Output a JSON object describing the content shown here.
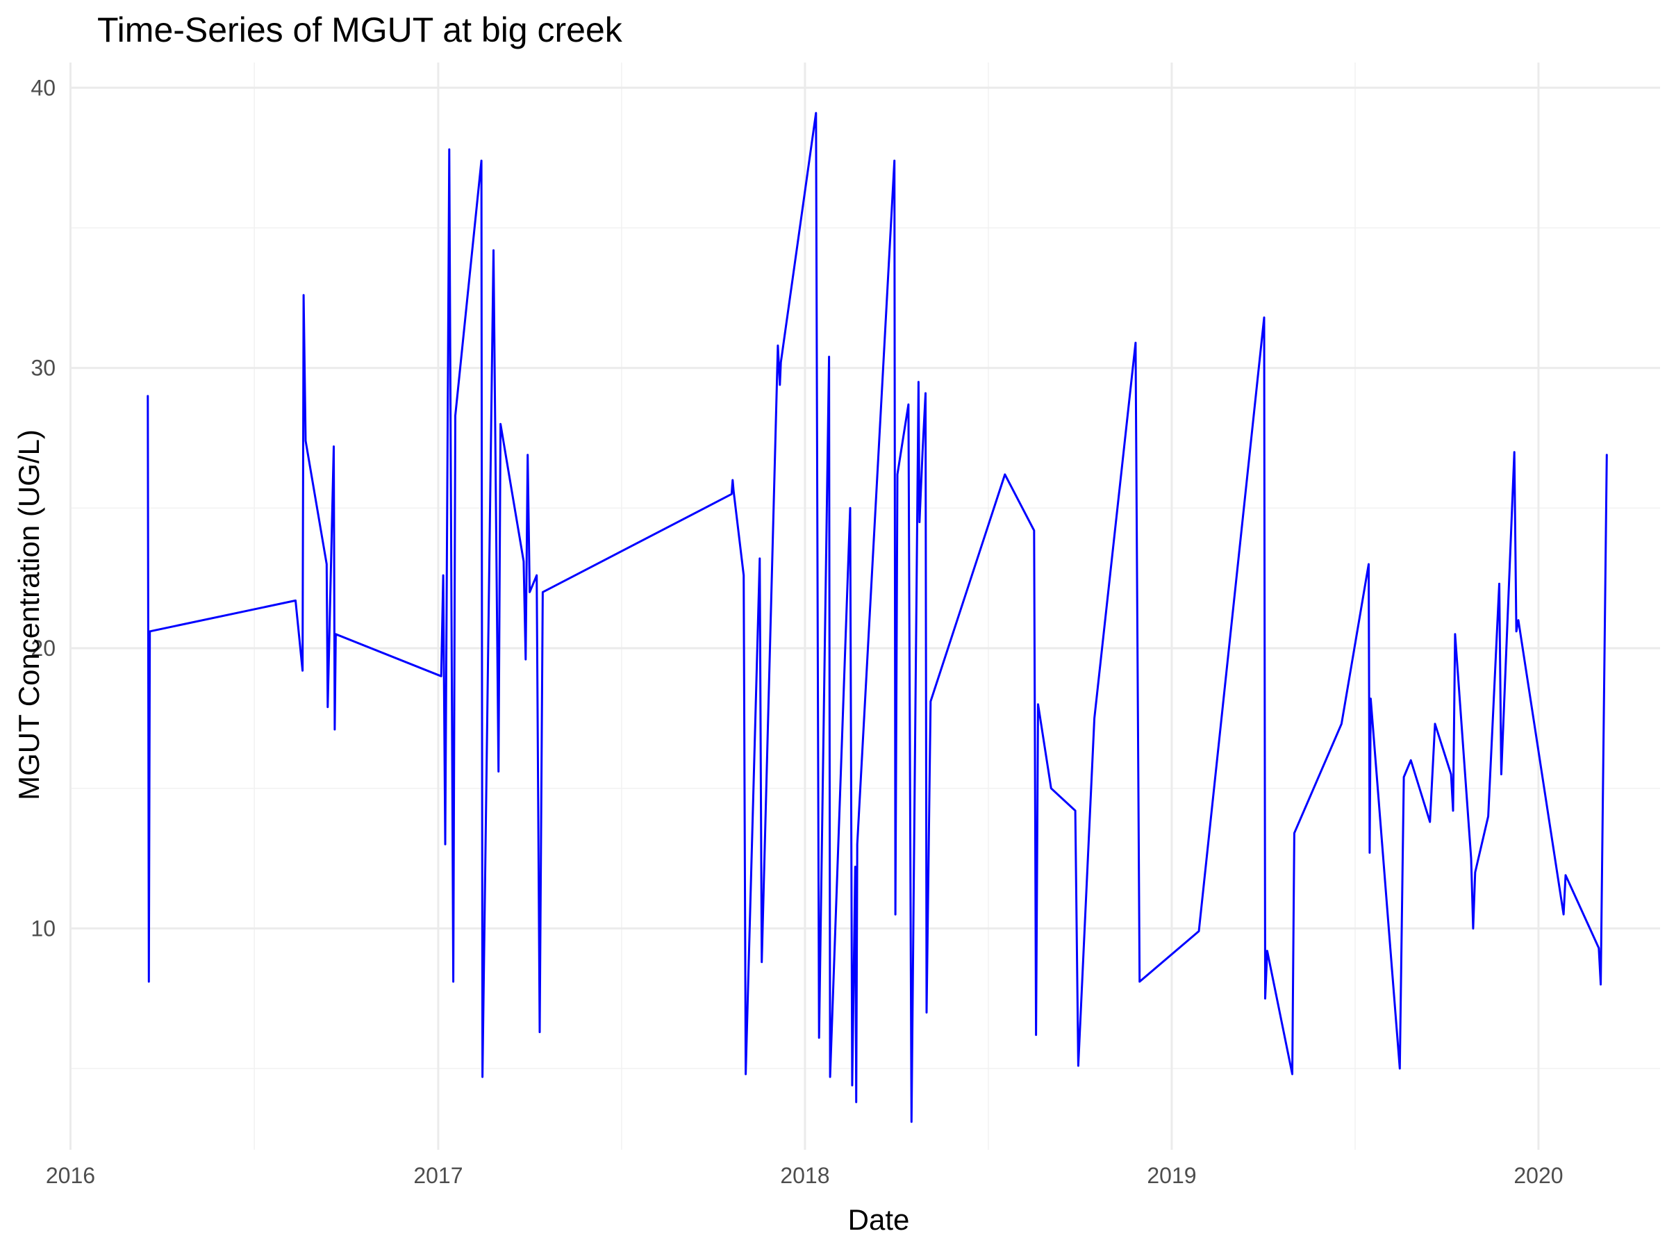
{
  "chart_data": {
    "type": "line",
    "title": "Time-Series of MGUT at big creek",
    "xlabel": "Date",
    "ylabel": "MGUT Concentration (UG/L)",
    "x_axis_type": "date",
    "xlim": [
      "2015-12-31",
      "2020-05-01"
    ],
    "ylim": [
      2.1,
      40.9
    ],
    "x_ticks": [
      "2016-01-01",
      "2017-01-01",
      "2018-01-01",
      "2019-01-01",
      "2020-01-01"
    ],
    "x_tick_labels": [
      "2016",
      "2017",
      "2018",
      "2019",
      "2020"
    ],
    "y_ticks": [
      10,
      20,
      30,
      40
    ],
    "y_tick_labels": [
      "10",
      "20",
      "30",
      "40"
    ],
    "grid": true,
    "legend": "none",
    "colors": {
      "series": "#0000ff",
      "grid": "#ebebeb",
      "background": "#ffffff"
    },
    "series": [
      {
        "points": [
          [
            "2016-03-18",
            29.0
          ],
          [
            "2016-03-19",
            8.1
          ],
          [
            "2016-03-20",
            20.6
          ],
          [
            "2016-08-12",
            21.7
          ],
          [
            "2016-08-19",
            19.2
          ],
          [
            "2016-08-20",
            32.6
          ],
          [
            "2016-08-22",
            27.4
          ],
          [
            "2016-09-12",
            23.0
          ],
          [
            "2016-09-13",
            17.9
          ],
          [
            "2016-09-19",
            27.2
          ],
          [
            "2016-09-20",
            17.1
          ],
          [
            "2016-09-21",
            20.5
          ],
          [
            "2017-01-04",
            19.0
          ],
          [
            "2017-01-06",
            22.6
          ],
          [
            "2017-01-08",
            13.0
          ],
          [
            "2017-01-12",
            37.8
          ],
          [
            "2017-01-16",
            8.1
          ],
          [
            "2017-01-18",
            28.3
          ],
          [
            "2017-02-13",
            37.4
          ],
          [
            "2017-02-14",
            4.7
          ],
          [
            "2017-02-25",
            34.2
          ],
          [
            "2017-03-02",
            15.6
          ],
          [
            "2017-03-04",
            28.0
          ],
          [
            "2017-03-27",
            23.1
          ],
          [
            "2017-03-29",
            19.6
          ],
          [
            "2017-03-31",
            26.9
          ],
          [
            "2017-04-02",
            22.0
          ],
          [
            "2017-04-09",
            22.6
          ],
          [
            "2017-04-12",
            6.3
          ],
          [
            "2017-04-15",
            22.0
          ],
          [
            "2017-10-20",
            25.5
          ],
          [
            "2017-10-21",
            26.0
          ],
          [
            "2017-10-22",
            25.6
          ],
          [
            "2017-11-01",
            22.6
          ],
          [
            "2017-11-03",
            4.8
          ],
          [
            "2017-11-17",
            23.2
          ],
          [
            "2017-11-19",
            8.8
          ],
          [
            "2017-12-05",
            30.8
          ],
          [
            "2017-12-07",
            29.4
          ],
          [
            "2017-12-08",
            30.2
          ],
          [
            "2018-01-12",
            39.1
          ],
          [
            "2018-01-15",
            6.1
          ],
          [
            "2018-01-25",
            30.4
          ],
          [
            "2018-01-26",
            4.7
          ],
          [
            "2018-02-15",
            25.0
          ],
          [
            "2018-02-17",
            4.4
          ],
          [
            "2018-02-20",
            12.2
          ],
          [
            "2018-02-21",
            3.8
          ],
          [
            "2018-02-22",
            13.0
          ],
          [
            "2018-03-31",
            37.4
          ],
          [
            "2018-04-01",
            10.5
          ],
          [
            "2018-04-03",
            26.2
          ],
          [
            "2018-04-14",
            28.7
          ],
          [
            "2018-04-17",
            3.1
          ],
          [
            "2018-04-24",
            29.5
          ],
          [
            "2018-04-25",
            24.5
          ],
          [
            "2018-04-28",
            27.0
          ],
          [
            "2018-05-01",
            29.1
          ],
          [
            "2018-05-02",
            7.0
          ],
          [
            "2018-05-06",
            18.1
          ],
          [
            "2018-07-19",
            26.2
          ],
          [
            "2018-08-17",
            24.2
          ],
          [
            "2018-08-19",
            6.2
          ],
          [
            "2018-08-21",
            18.0
          ],
          [
            "2018-09-03",
            15.0
          ],
          [
            "2018-09-27",
            14.2
          ],
          [
            "2018-09-30",
            5.1
          ],
          [
            "2018-10-16",
            17.5
          ],
          [
            "2018-11-26",
            30.9
          ],
          [
            "2018-11-30",
            8.1
          ],
          [
            "2019-01-28",
            9.9
          ],
          [
            "2019-04-03",
            31.8
          ],
          [
            "2019-04-04",
            7.5
          ],
          [
            "2019-04-06",
            9.2
          ],
          [
            "2019-05-01",
            4.8
          ],
          [
            "2019-05-03",
            13.4
          ],
          [
            "2019-06-19",
            17.3
          ],
          [
            "2019-07-16",
            23.0
          ],
          [
            "2019-07-17",
            12.7
          ],
          [
            "2019-07-18",
            18.2
          ],
          [
            "2019-08-16",
            5.0
          ],
          [
            "2019-08-20",
            15.4
          ],
          [
            "2019-08-27",
            16.0
          ],
          [
            "2019-09-15",
            13.8
          ],
          [
            "2019-09-20",
            17.3
          ],
          [
            "2019-10-06",
            15.5
          ],
          [
            "2019-10-08",
            14.2
          ],
          [
            "2019-10-10",
            20.5
          ],
          [
            "2019-10-26",
            12.5
          ],
          [
            "2019-10-28",
            10.0
          ],
          [
            "2019-10-30",
            12.0
          ],
          [
            "2019-11-12",
            14.0
          ],
          [
            "2019-11-23",
            22.3
          ],
          [
            "2019-11-25",
            15.5
          ],
          [
            "2019-12-08",
            27.0
          ],
          [
            "2019-12-10",
            20.6
          ],
          [
            "2019-12-12",
            21.0
          ],
          [
            "2020-01-26",
            10.5
          ],
          [
            "2020-01-28",
            11.9
          ],
          [
            "2020-03-01",
            9.3
          ],
          [
            "2020-03-03",
            8.0
          ],
          [
            "2020-03-09",
            26.9
          ]
        ]
      }
    ]
  }
}
